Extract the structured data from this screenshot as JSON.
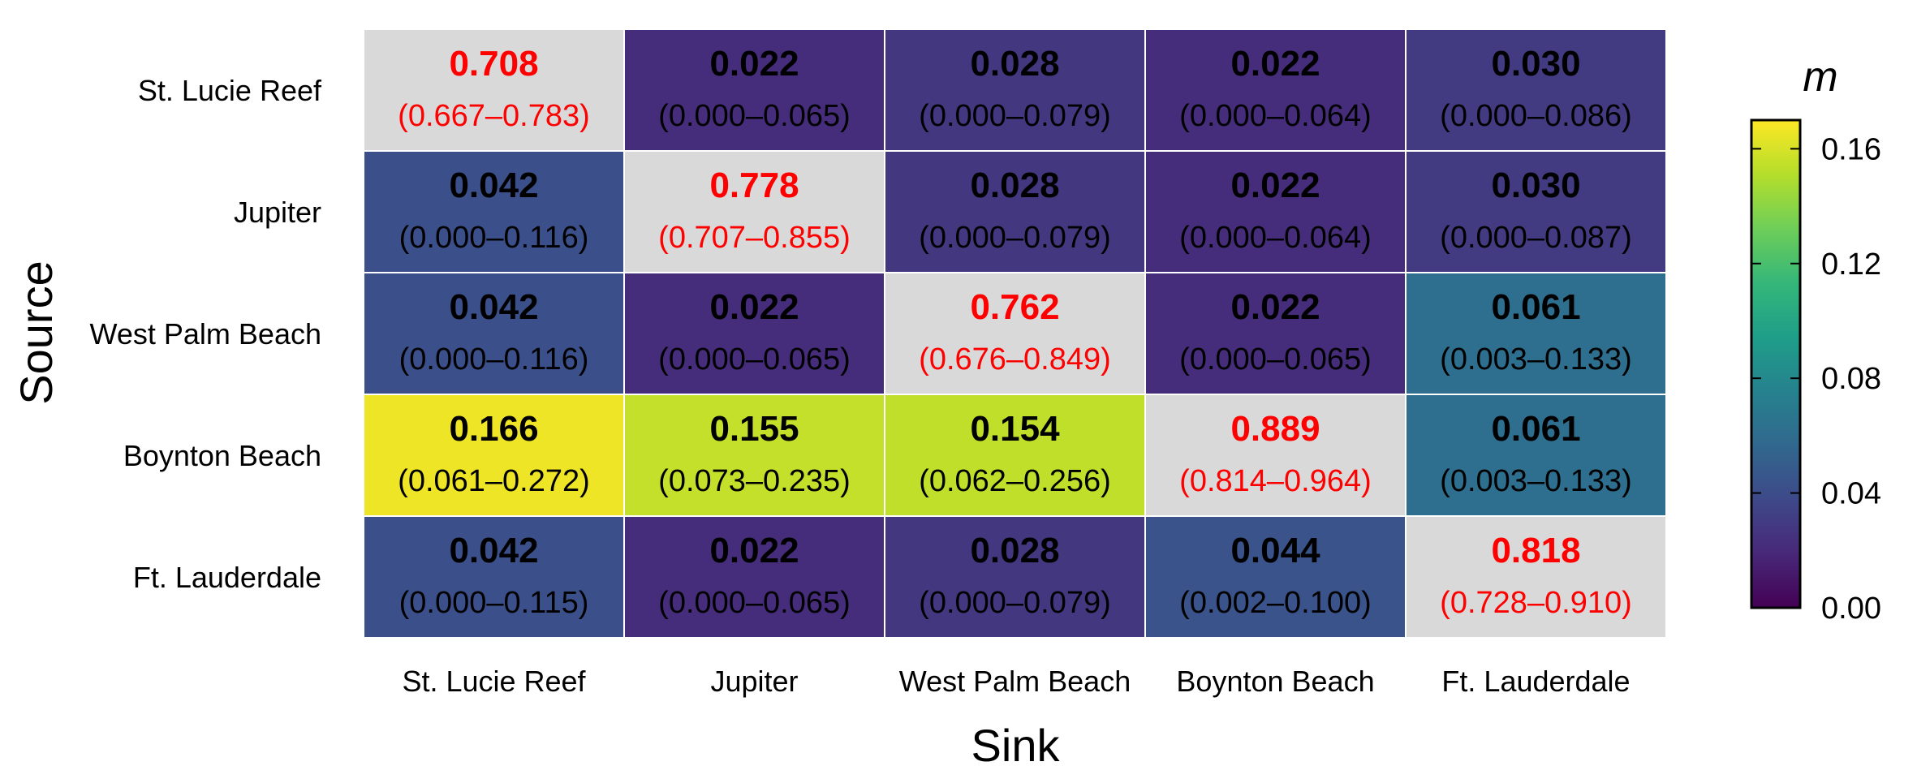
{
  "chart_data": {
    "type": "heatmap",
    "xlabel": "Sink",
    "ylabel": "Source",
    "rows": [
      "St. Lucie Reef",
      "Jupiter",
      "West Palm Beach",
      "Boynton Beach",
      "Ft. Lauderdale"
    ],
    "columns": [
      "St. Lucie Reef",
      "Jupiter",
      "West Palm Beach",
      "Boynton Beach",
      "Ft. Lauderdale"
    ],
    "values": [
      [
        0.708,
        0.022,
        0.028,
        0.022,
        0.03
      ],
      [
        0.042,
        0.778,
        0.028,
        0.022,
        0.03
      ],
      [
        0.042,
        0.022,
        0.762,
        0.022,
        0.061
      ],
      [
        0.166,
        0.155,
        0.154,
        0.889,
        0.061
      ],
      [
        0.042,
        0.022,
        0.028,
        0.044,
        0.818
      ]
    ],
    "value_labels": [
      [
        "0.708",
        "0.022",
        "0.028",
        "0.022",
        "0.030"
      ],
      [
        "0.042",
        "0.778",
        "0.028",
        "0.022",
        "0.030"
      ],
      [
        "0.042",
        "0.022",
        "0.762",
        "0.022",
        "0.061"
      ],
      [
        "0.166",
        "0.155",
        "0.154",
        "0.889",
        "0.061"
      ],
      [
        "0.042",
        "0.022",
        "0.028",
        "0.044",
        "0.818"
      ]
    ],
    "intervals": [
      [
        "(0.667–0.783)",
        "(0.000–0.065)",
        "(0.000–0.079)",
        "(0.000–0.064)",
        "(0.000–0.086)"
      ],
      [
        "(0.000–0.116)",
        "(0.707–0.855)",
        "(0.000–0.079)",
        "(0.000–0.064)",
        "(0.000–0.087)"
      ],
      [
        "(0.000–0.116)",
        "(0.000–0.065)",
        "(0.676–0.849)",
        "(0.000–0.065)",
        "(0.003–0.133)"
      ],
      [
        "(0.061–0.272)",
        "(0.073–0.235)",
        "(0.062–0.256)",
        "(0.814–0.964)",
        "(0.003–0.133)"
      ],
      [
        "(0.000–0.115)",
        "(0.000–0.065)",
        "(0.000–0.079)",
        "(0.002–0.100)",
        "(0.728–0.910)"
      ]
    ],
    "diagonal_color": "#d9d9d9",
    "diagonal_text_color": "#ff0000",
    "offdiagonal_text_color": "#000000",
    "colorbar": {
      "title": "m",
      "range": [
        0,
        0.17
      ],
      "ticks": [
        0.0,
        0.04,
        0.08,
        0.12,
        0.16
      ],
      "tick_labels": [
        "0.00",
        "0.04",
        "0.08",
        "0.12",
        "0.16"
      ],
      "colormap": "viridis"
    }
  }
}
